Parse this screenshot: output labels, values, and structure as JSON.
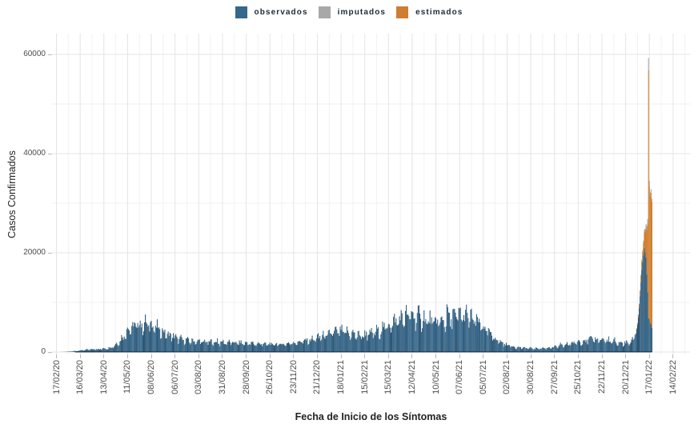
{
  "chart_data": {
    "type": "bar",
    "stacked": true,
    "title": "",
    "xlabel": "Fecha de Inicio de los Síntomas",
    "ylabel": "Casos Confirmados",
    "ylim": [
      0,
      64200
    ],
    "y_tick_values": [
      0,
      20000,
      40000,
      60000
    ],
    "y_tick_labels": [
      "0",
      "20000",
      "40000",
      "60000"
    ],
    "y_minor_gridlines": [
      10000,
      30000,
      50000
    ],
    "grid": true,
    "legend_position": "top",
    "x_is_daily_index_from": "17/02/20",
    "x_tick_interval_days": 28,
    "x_tick_labels": [
      "17/02/20",
      "16/03/20",
      "13/04/20",
      "11/05/20",
      "08/06/20",
      "06/07/20",
      "03/08/20",
      "31/08/20",
      "28/09/20",
      "26/10/20",
      "23/11/20",
      "21/12/20",
      "18/01/21",
      "15/02/21",
      "15/03/21",
      "12/04/21",
      "10/05/21",
      "07/06/21",
      "05/07/21",
      "02/08/21",
      "30/08/21",
      "27/09/21",
      "25/10/21",
      "22/11/21",
      "20/12/21",
      "17/01/22",
      "14/02/22"
    ],
    "last_day_index": 703,
    "values_are_estimates_read_from_pixels": true,
    "peak": {
      "day_index": 699,
      "approx_date": "16/01/22",
      "approx_total": 59500
    },
    "series": [
      {
        "name": "observados",
        "color": "#35688C",
        "control_points": [
          [
            0,
            0
          ],
          [
            8,
            15
          ],
          [
            14,
            60
          ],
          [
            20,
            150
          ],
          [
            26,
            270
          ],
          [
            32,
            390
          ],
          [
            40,
            480
          ],
          [
            48,
            560
          ],
          [
            56,
            660
          ],
          [
            62,
            820
          ],
          [
            66,
            1050
          ],
          [
            70,
            1450
          ],
          [
            74,
            2050
          ],
          [
            78,
            2850
          ],
          [
            82,
            3650
          ],
          [
            86,
            4350
          ],
          [
            90,
            4950
          ],
          [
            94,
            5250
          ],
          [
            98,
            5450
          ],
          [
            104,
            5550
          ],
          [
            110,
            5350
          ],
          [
            116,
            4950
          ],
          [
            122,
            4350
          ],
          [
            128,
            3750
          ],
          [
            134,
            3250
          ],
          [
            140,
            2850
          ],
          [
            148,
            2450
          ],
          [
            156,
            2250
          ],
          [
            166,
            2080
          ],
          [
            176,
            1980
          ],
          [
            190,
            1920
          ],
          [
            205,
            1860
          ],
          [
            220,
            1760
          ],
          [
            235,
            1620
          ],
          [
            250,
            1520
          ],
          [
            262,
            1500
          ],
          [
            272,
            1620
          ],
          [
            282,
            1860
          ],
          [
            292,
            2120
          ],
          [
            300,
            2380
          ],
          [
            308,
            2720
          ],
          [
            316,
            3120
          ],
          [
            324,
            3520
          ],
          [
            330,
            3820
          ],
          [
            336,
            4020
          ],
          [
            342,
            3870
          ],
          [
            350,
            3520
          ],
          [
            358,
            3270
          ],
          [
            366,
            3320
          ],
          [
            374,
            3720
          ],
          [
            382,
            4320
          ],
          [
            390,
            5120
          ],
          [
            398,
            5820
          ],
          [
            406,
            6520
          ],
          [
            412,
            6920
          ],
          [
            418,
            7220
          ],
          [
            424,
            7120
          ],
          [
            430,
            6720
          ],
          [
            436,
            6320
          ],
          [
            442,
            6020
          ],
          [
            448,
            5870
          ],
          [
            454,
            6020
          ],
          [
            460,
            6320
          ],
          [
            466,
            6720
          ],
          [
            472,
            7020
          ],
          [
            478,
            7270
          ],
          [
            484,
            7120
          ],
          [
            490,
            6620
          ],
          [
            496,
            5920
          ],
          [
            502,
            5020
          ],
          [
            508,
            4120
          ],
          [
            514,
            3220
          ],
          [
            520,
            2420
          ],
          [
            526,
            1820
          ],
          [
            532,
            1420
          ],
          [
            540,
            1060
          ],
          [
            548,
            860
          ],
          [
            556,
            760
          ],
          [
            564,
            710
          ],
          [
            572,
            730
          ],
          [
            580,
            810
          ],
          [
            588,
            960
          ],
          [
            596,
            1210
          ],
          [
            604,
            1510
          ],
          [
            612,
            1810
          ],
          [
            620,
            2160
          ],
          [
            628,
            2410
          ],
          [
            634,
            2510
          ],
          [
            640,
            2410
          ],
          [
            648,
            2210
          ],
          [
            656,
            1960
          ],
          [
            664,
            1760
          ],
          [
            670,
            1660
          ],
          [
            676,
            1760
          ],
          [
            680,
            2200
          ],
          [
            682,
            2800
          ],
          [
            684,
            3800
          ],
          [
            685,
            4500
          ],
          [
            686,
            5500
          ],
          [
            687,
            7000
          ],
          [
            688,
            9000
          ],
          [
            689,
            11500
          ],
          [
            690,
            14000
          ],
          [
            691,
            16500
          ],
          [
            692,
            18500
          ],
          [
            693,
            19800
          ],
          [
            694,
            20200
          ],
          [
            695,
            19500
          ],
          [
            696,
            18000
          ],
          [
            697,
            15500
          ],
          [
            698,
            12000
          ],
          [
            699,
            7000
          ],
          [
            700,
            6300
          ],
          [
            701,
            5800
          ],
          [
            702,
            5400
          ],
          [
            703,
            5000
          ]
        ]
      },
      {
        "name": "imputados",
        "color": "#A8A8A8",
        "control_points": [
          [
            686,
            0
          ],
          [
            689,
            200
          ],
          [
            692,
            400
          ],
          [
            695,
            600
          ],
          [
            697,
            800
          ],
          [
            698,
            900
          ],
          [
            699,
            2500
          ],
          [
            700,
            1000
          ],
          [
            701,
            800
          ],
          [
            702,
            700
          ],
          [
            703,
            600
          ]
        ]
      },
      {
        "name": "estimados",
        "color": "#CE7E2E",
        "control_points": [
          [
            683,
            0
          ],
          [
            686,
            400
          ],
          [
            688,
            800
          ],
          [
            690,
            1300
          ],
          [
            692,
            2000
          ],
          [
            693,
            2600
          ],
          [
            694,
            3200
          ],
          [
            695,
            4200
          ],
          [
            696,
            6000
          ],
          [
            697,
            9000
          ],
          [
            698,
            14000
          ],
          [
            699,
            50000
          ],
          [
            700,
            26000
          ],
          [
            701,
            26500
          ],
          [
            702,
            27000
          ],
          [
            703,
            25000
          ]
        ]
      }
    ],
    "render": {
      "stack_order": [
        0,
        2,
        1
      ],
      "note": "daily bars textured with weekly jitter; gray imputados drawn on top tip"
    }
  }
}
